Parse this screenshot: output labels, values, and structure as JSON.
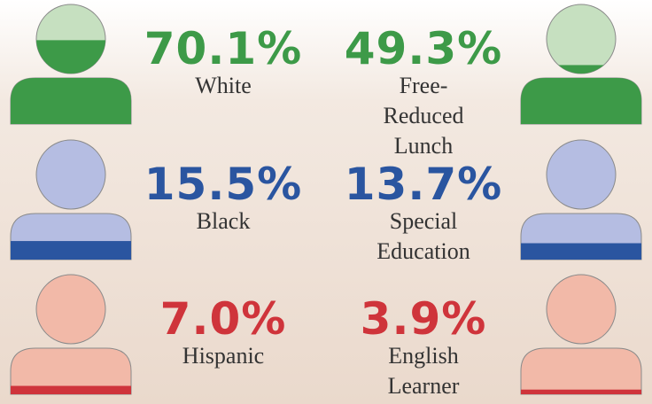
{
  "chart_data": {
    "type": "pictograph",
    "categories": [
      "White",
      "Black",
      "Hispanic",
      "Free-Reduced Lunch",
      "Special Education",
      "English Learner"
    ],
    "values": [
      70.1,
      15.5,
      7.0,
      49.3,
      13.7,
      3.9
    ],
    "value_labels": [
      "70.1%",
      "15.5%",
      "7.0%",
      "49.3%",
      "13.7%",
      "3.9%"
    ],
    "colors": [
      "#3d9a48",
      "#2a55a0",
      "#cf343b",
      "#3d9a48",
      "#2a55a0",
      "#cf343b"
    ],
    "light_colors": [
      "#c6e0c0",
      "#b5bde2",
      "#f2b9a8",
      "#c6e0c0",
      "#b5bde2",
      "#f2b9a8"
    ],
    "ylim": [
      0,
      100
    ]
  }
}
